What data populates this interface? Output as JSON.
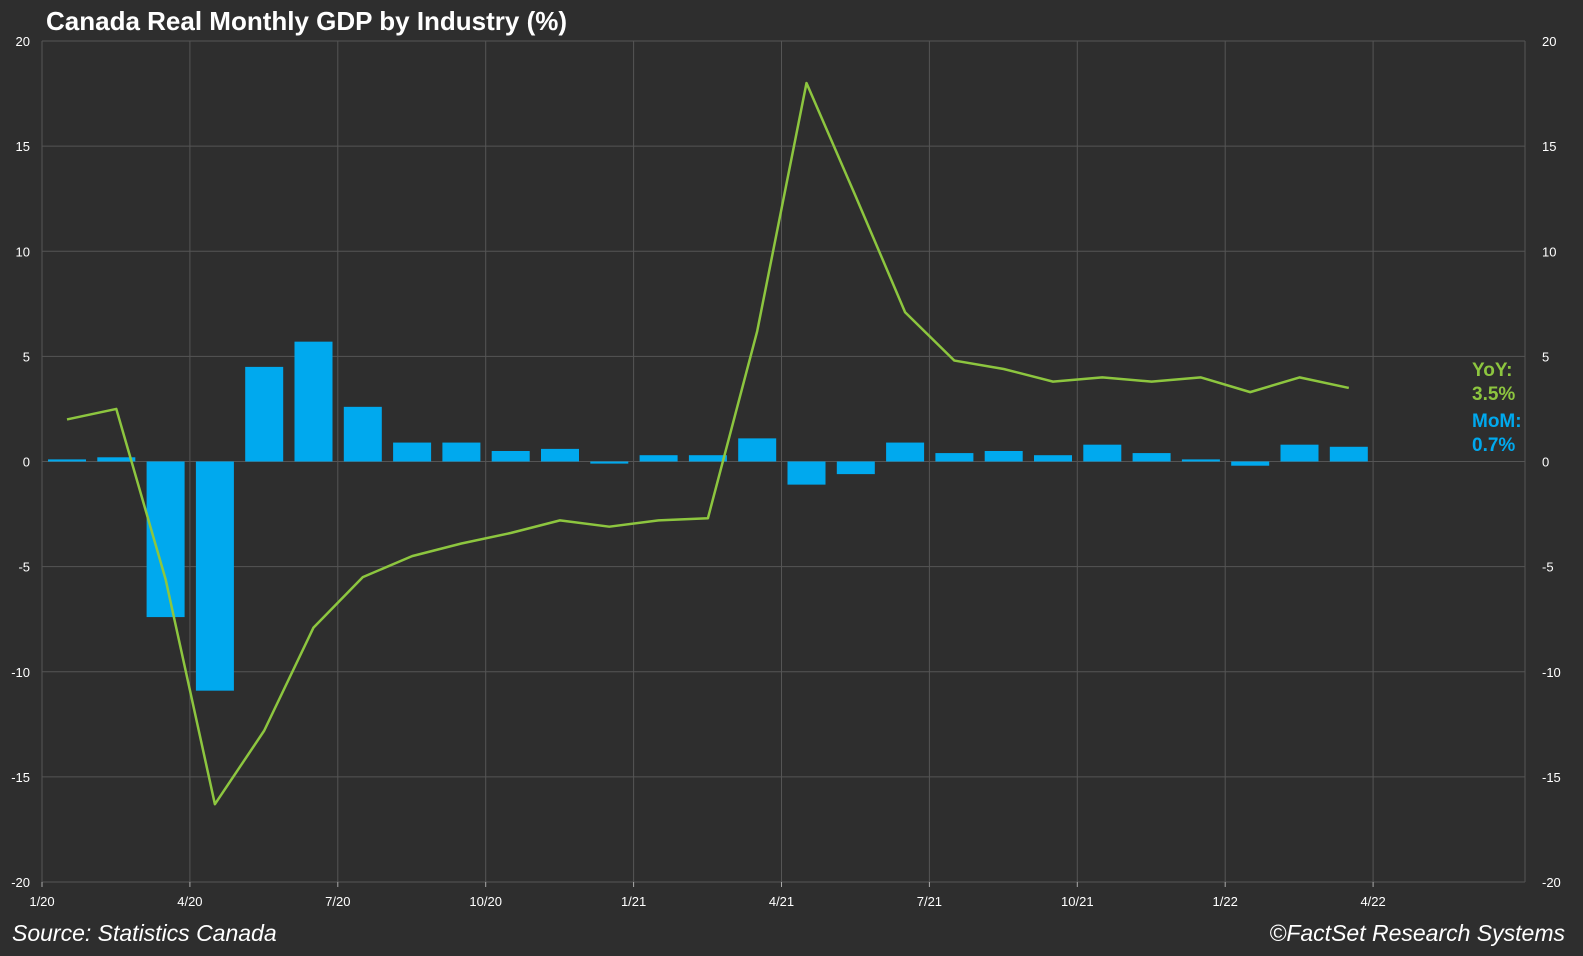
{
  "chart_data": {
    "type": "bar",
    "title": "Canada Real Monthly GDP by Industry (%)",
    "xlabel": "",
    "ylabel": "",
    "ylim": [
      -20,
      20
    ],
    "yticks": [
      -20,
      -15,
      -10,
      -5,
      0,
      5,
      10,
      15,
      20
    ],
    "x_tick_labels": [
      "1/20",
      "4/20",
      "7/20",
      "10/20",
      "1/21",
      "4/21",
      "7/21",
      "10/21",
      "1/22",
      "4/22"
    ],
    "categories": [
      "1/20",
      "2/20",
      "3/20",
      "4/20",
      "5/20",
      "6/20",
      "7/20",
      "8/20",
      "9/20",
      "10/20",
      "11/20",
      "12/20",
      "1/21",
      "2/21",
      "3/21",
      "4/21",
      "5/21",
      "6/21",
      "7/21",
      "8/21",
      "9/21",
      "10/21",
      "11/21",
      "12/21",
      "1/22",
      "2/22",
      "3/22",
      "4/22"
    ],
    "grid": true,
    "series": [
      {
        "name": "MoM",
        "type": "bar",
        "color": "#00a9ee",
        "values": [
          0.1,
          0.2,
          -7.4,
          -10.9,
          4.5,
          5.7,
          2.6,
          0.9,
          0.9,
          0.5,
          0.6,
          -0.1,
          0.3,
          0.3,
          1.1,
          -1.1,
          -0.6,
          0.9,
          0.4,
          0.5,
          0.3,
          0.8,
          0.4,
          0.1,
          -0.2,
          0.8,
          0.7,
          null
        ]
      },
      {
        "name": "YoY",
        "type": "line",
        "color": "#8dc63f",
        "values": [
          2.0,
          2.5,
          -5.6,
          -16.3,
          -12.8,
          -7.9,
          -5.5,
          -4.5,
          -3.9,
          -3.4,
          -2.8,
          -3.1,
          -2.8,
          -2.7,
          6.2,
          18.0,
          12.6,
          7.1,
          4.8,
          4.4,
          3.8,
          4.0,
          3.8,
          4.0,
          3.3,
          4.0,
          3.5,
          null
        ]
      }
    ],
    "end_labels": [
      {
        "series": "YoY",
        "label": "YoY:",
        "value": "3.5%",
        "color": "#8dc63f"
      },
      {
        "series": "MoM",
        "label": "MoM:",
        "value": "0.7%",
        "color": "#00a9ee"
      }
    ],
    "annotations": {
      "source": "Source: Statistics Canada",
      "copyright": "©FactSet Research Systems"
    }
  }
}
